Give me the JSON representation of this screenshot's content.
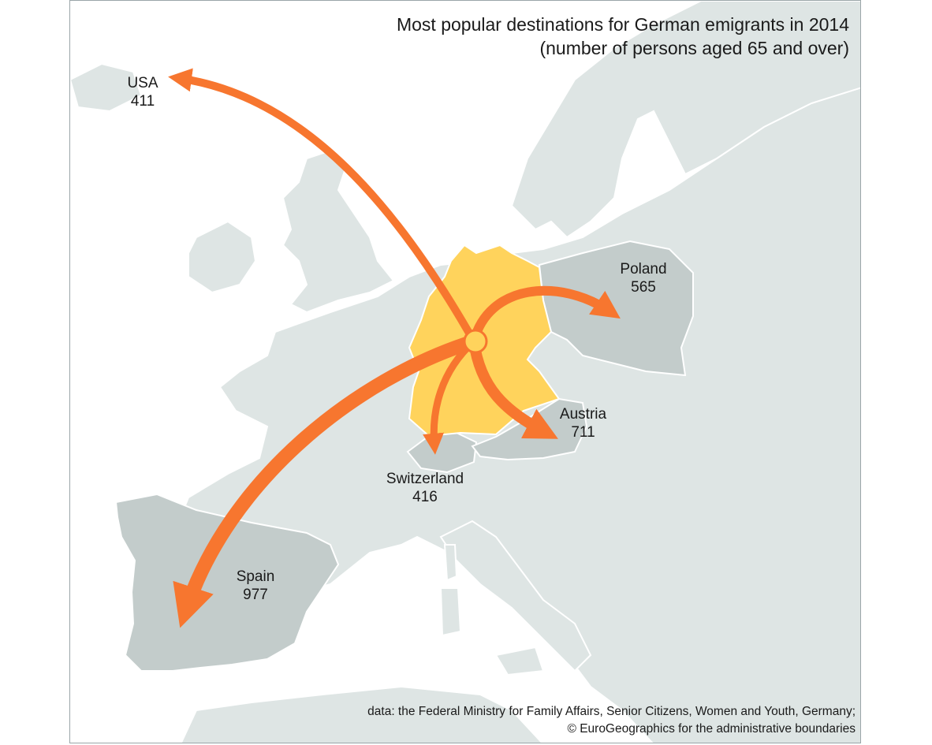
{
  "title": {
    "line1": "Most popular destinations for German emigrants in 2014",
    "line2": "(number of persons aged 65 and over)"
  },
  "origin": {
    "country": "Germany",
    "color": "#ffd35c"
  },
  "destinations": [
    {
      "country": "USA",
      "value": 411
    },
    {
      "country": "Poland",
      "value": 565
    },
    {
      "country": "Austria",
      "value": 711
    },
    {
      "country": "Switzerland",
      "value": 416
    },
    {
      "country": "Spain",
      "value": 977
    }
  ],
  "colors": {
    "arrow": "#f7762f",
    "land": "#dee5e4",
    "highlight_land": "#c3cccb",
    "sea": "#ffffff"
  },
  "credits": {
    "line1": "data: the Federal Ministry for Family Affairs, Senior Citizens, Women and Youth, Germany;",
    "line2": "© EuroGeographics for the administrative boundaries"
  }
}
